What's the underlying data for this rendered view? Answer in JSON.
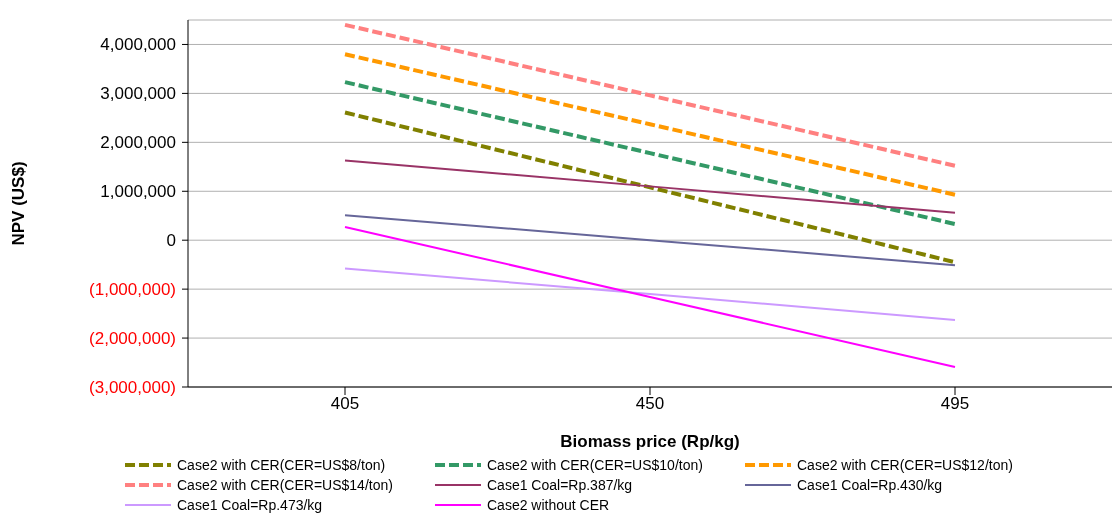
{
  "chart_data": {
    "type": "line",
    "xlabel": "Biomass price (Rp/kg)",
    "ylabel": "NPV (US$)",
    "categories": [
      "405",
      "450",
      "495"
    ],
    "ylim": [
      -3000000,
      4500000
    ],
    "yticks": [
      {
        "value": -3000000,
        "label": "(3,000,000)"
      },
      {
        "value": -2000000,
        "label": "(2,000,000)"
      },
      {
        "value": -1000000,
        "label": "(1,000,000)"
      },
      0,
      {
        "value": 1000000,
        "label": "1,000,000"
      },
      {
        "value": 2000000,
        "label": "2,000,000"
      },
      {
        "value": 3000000,
        "label": "3,000,000"
      },
      {
        "value": 4000000,
        "label": "4,000,000"
      }
    ],
    "grid": "y",
    "legend": "bottom",
    "marker": "none",
    "series": [
      {
        "name": "Case2 with CER(CER=US$8/ton)",
        "color": "#808000",
        "line_style": "dashed",
        "values": [
          2610000,
          1080000,
          -450000
        ]
      },
      {
        "name": "Case2 with CER(CER=US$10/ton)",
        "color": "#339966",
        "line_style": "dashed",
        "values": [
          3230000,
          1780000,
          330000
        ]
      },
      {
        "name": "Case2 with CER(CER=US$12/ton)",
        "color": "#ff9900",
        "line_style": "dashed",
        "values": [
          3800000,
          2370000,
          930000
        ]
      },
      {
        "name": "Case2 with CER(CER=US$14/ton)",
        "color": "#ff8080",
        "line_style": "dashed",
        "values": [
          4400000,
          2960000,
          1520000
        ]
      },
      {
        "name": "Case1 Coal=Rp.387/kg",
        "color": "#993366",
        "line_style": "solid",
        "values": [
          1630000,
          1100000,
          560000
        ]
      },
      {
        "name": "Case1 Coal=Rp.430/kg",
        "color": "#666699",
        "line_style": "solid",
        "values": [
          510000,
          0,
          -510000
        ]
      },
      {
        "name": "Case1 Coal=Rp.473/kg",
        "color": "#cc99ff",
        "line_style": "solid",
        "values": [
          -580000,
          -1100000,
          -1630000
        ]
      },
      {
        "name": "Case2 without CER",
        "color": "#ff00ff",
        "line_style": "solid",
        "values": [
          270000,
          -1160000,
          -2590000
        ]
      }
    ]
  }
}
